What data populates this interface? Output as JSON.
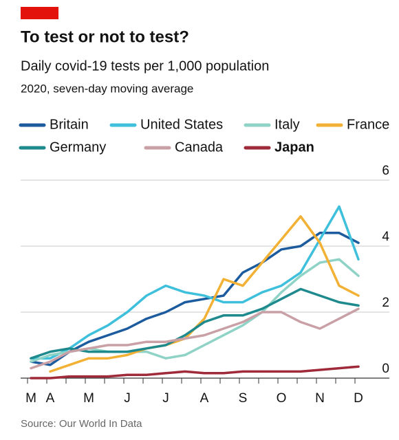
{
  "chart_data": {
    "type": "line",
    "title": "To test or not to test?",
    "subtitle": "Daily covid-19 tests per 1,000 population",
    "note": "2020, seven-day moving average",
    "source": "Source: Our World In Data",
    "categories": [
      "M",
      "A",
      null,
      "M",
      null,
      "J",
      null,
      "J",
      null,
      "A",
      null,
      "S",
      null,
      "O",
      null,
      "N",
      null,
      "D"
    ],
    "ylim": [
      0,
      6
    ],
    "yticks": [
      0,
      2,
      4,
      6
    ],
    "grid": true,
    "legend": "top",
    "series": [
      {
        "name": "Britain",
        "color": "#1b5b9e",
        "values": [
          0.5,
          0.4,
          0.8,
          1.1,
          1.3,
          1.5,
          1.8,
          2.0,
          2.3,
          2.4,
          2.5,
          3.2,
          3.5,
          3.9,
          4.0,
          4.4,
          4.4,
          4.1
        ]
      },
      {
        "name": "United States",
        "color": "#3ebfdb",
        "values": [
          0.6,
          0.6,
          0.9,
          1.3,
          1.6,
          2.0,
          2.5,
          2.8,
          2.6,
          2.5,
          2.3,
          2.3,
          2.6,
          2.8,
          3.2,
          4.2,
          5.2,
          3.6
        ]
      },
      {
        "name": "Italy",
        "color": "#8fd3c6",
        "values": [
          0.5,
          0.7,
          0.8,
          0.9,
          0.8,
          0.8,
          0.8,
          0.6,
          0.7,
          1.0,
          1.3,
          1.6,
          2.0,
          2.6,
          3.1,
          3.5,
          3.6,
          3.1
        ]
      },
      {
        "name": "France",
        "color": "#f2b134",
        "values": [
          null,
          0.2,
          0.4,
          0.6,
          0.6,
          0.7,
          0.9,
          1.0,
          1.2,
          1.8,
          3.0,
          2.8,
          3.5,
          4.2,
          4.9,
          4.1,
          2.8,
          2.5
        ]
      },
      {
        "name": "Germany",
        "color": "#1f8a8e",
        "values": [
          0.6,
          0.8,
          0.9,
          0.8,
          0.8,
          0.8,
          0.9,
          1.0,
          1.3,
          1.7,
          1.9,
          1.9,
          2.1,
          2.4,
          2.7,
          2.5,
          2.3,
          2.2
        ]
      },
      {
        "name": "Canada",
        "color": "#c9a0a6",
        "values": [
          0.3,
          0.5,
          0.8,
          0.9,
          1.0,
          1.0,
          1.1,
          1.1,
          1.2,
          1.3,
          1.5,
          1.7,
          2.0,
          2.0,
          1.7,
          1.5,
          1.8,
          2.1
        ]
      },
      {
        "name": "Japan",
        "color": "#9e2a3a",
        "bold": true,
        "values": [
          0.0,
          0.0,
          0.05,
          0.05,
          0.05,
          0.1,
          0.1,
          0.15,
          0.2,
          0.15,
          0.15,
          0.2,
          0.2,
          0.2,
          0.2,
          0.25,
          0.3,
          0.35
        ]
      }
    ]
  }
}
